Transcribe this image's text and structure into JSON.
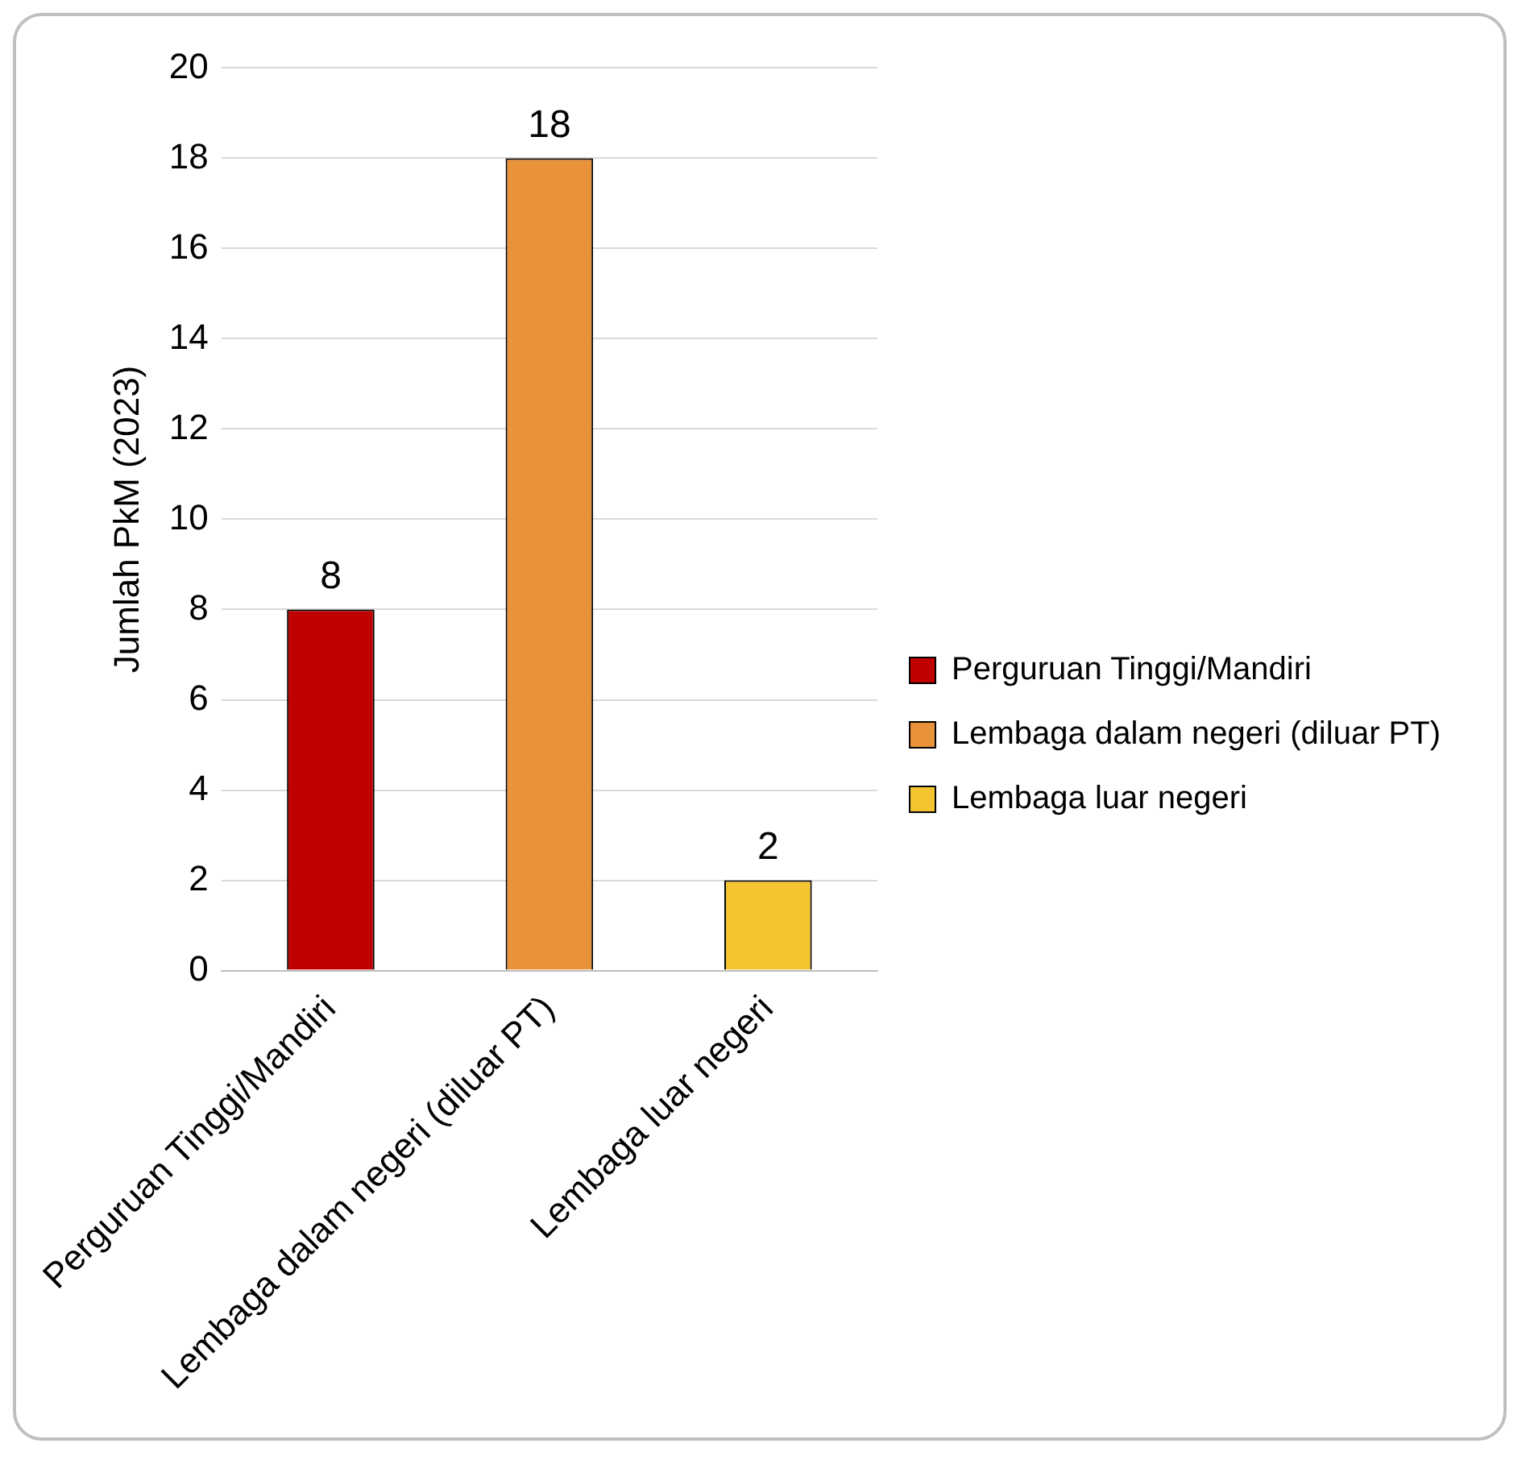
{
  "chart_data": {
    "type": "bar",
    "ylabel": "Jumlah PkM (2023)",
    "categories": [
      "Perguruan Tinggi/Mandiri",
      "Lembaga dalam negeri (diluar PT)",
      "Lembaga luar negeri"
    ],
    "series": [
      {
        "name": "Perguruan Tinggi/Mandiri",
        "color": "#c00000",
        "values": [
          8,
          null,
          null
        ]
      },
      {
        "name": "Lembaga dalam negeri (diluar PT)",
        "color": "#e8923a",
        "values": [
          null,
          18,
          null
        ]
      },
      {
        "name": "Lembaga luar negeri",
        "color": "#f4c430",
        "values": [
          null,
          null,
          2
        ]
      }
    ],
    "ylim": [
      0,
      20
    ],
    "yticks": [
      0,
      2,
      4,
      6,
      8,
      10,
      12,
      14,
      16,
      18,
      20
    ],
    "grid": "y",
    "legend": "right",
    "data_labels": true
  }
}
